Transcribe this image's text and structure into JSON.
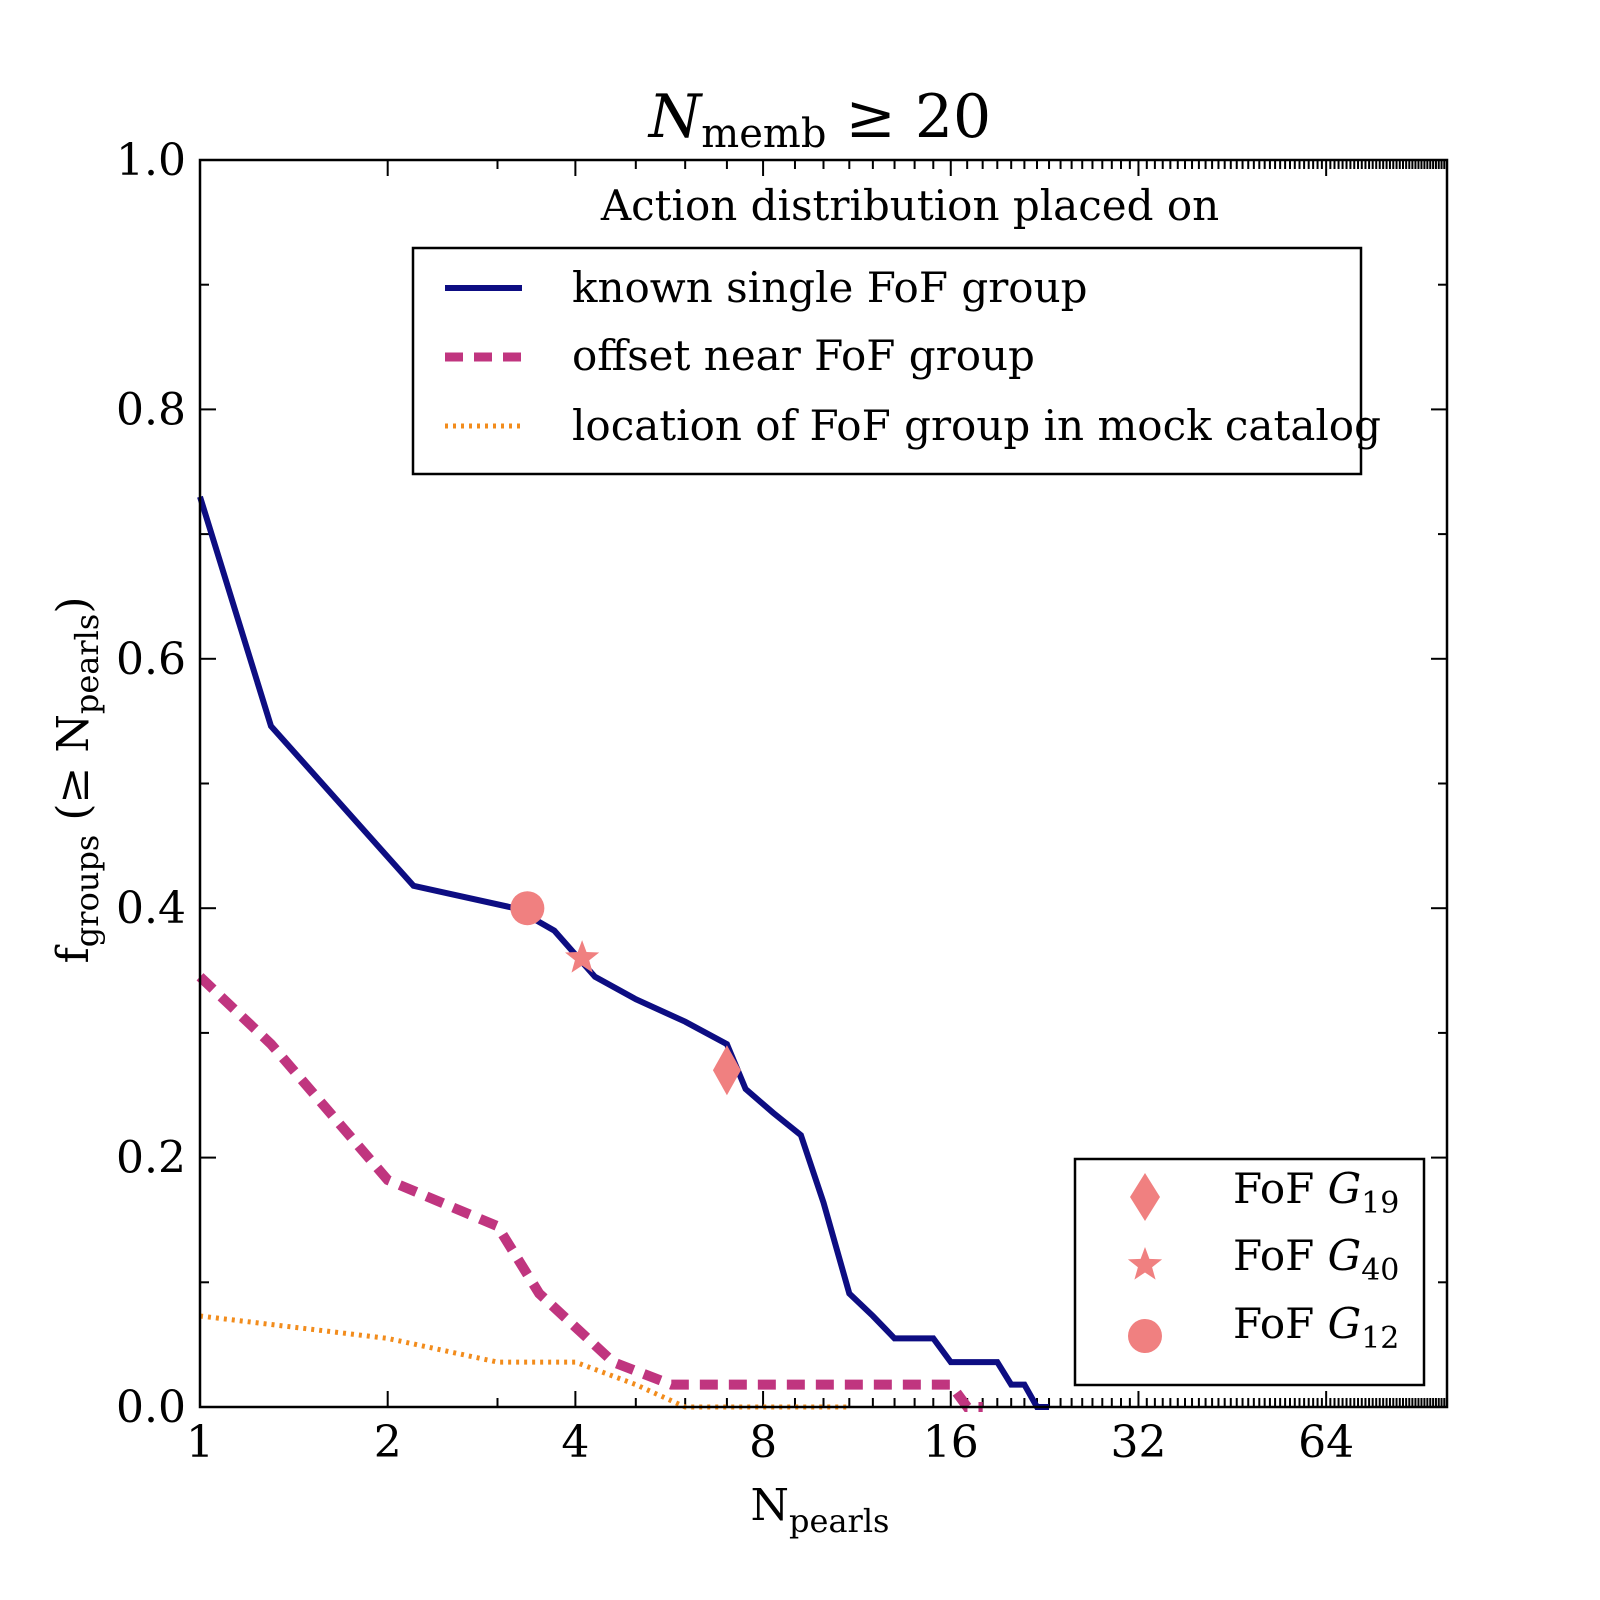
{
  "chart_data": {
    "type": "line",
    "title": {
      "main": "N",
      "sub": "memb",
      "rest": " ≥ 20"
    },
    "xlabel": {
      "main": "N",
      "sub": "pearls"
    },
    "ylabel": {
      "main": "f",
      "sub": "groups",
      "rest_open": " (≥ N",
      "sub2": "pearls",
      "rest_close": ")"
    },
    "xscale": "log2",
    "xlim": [
      1,
      100
    ],
    "ylim": [
      0.0,
      1.0
    ],
    "xticks": [
      {
        "value": 1,
        "label": "1"
      },
      {
        "value": 2,
        "label": "2"
      },
      {
        "value": 4,
        "label": "4"
      },
      {
        "value": 8,
        "label": "8"
      },
      {
        "value": 16,
        "label": "16"
      },
      {
        "value": 32,
        "label": "32"
      },
      {
        "value": 64,
        "label": "64"
      }
    ],
    "yticks": [
      {
        "value": 0.0,
        "label": "0.0"
      },
      {
        "value": 0.2,
        "label": "0.2"
      },
      {
        "value": 0.4,
        "label": "0.4"
      },
      {
        "value": 0.6,
        "label": "0.6"
      },
      {
        "value": 0.8,
        "label": "0.8"
      },
      {
        "value": 1.0,
        "label": "1.0"
      }
    ],
    "legend_title": "Action distribution placed on",
    "legend_position": "top-right",
    "series": [
      {
        "name": "known single FoF group",
        "style": "solid",
        "color": "#0d0d82",
        "x": [
          1,
          1.3,
          2.2,
          3.2,
          3.7,
          4.3,
          5,
          6,
          7,
          7.5,
          8.3,
          9.2,
          10,
          11,
          12,
          13,
          14,
          15,
          16,
          17,
          18,
          19,
          20,
          21,
          22,
          23
        ],
        "y": [
          0.73,
          0.546,
          0.418,
          0.4,
          0.382,
          0.345,
          0.327,
          0.309,
          0.291,
          0.255,
          0.236,
          0.218,
          0.164,
          0.091,
          0.073,
          0.055,
          0.055,
          0.055,
          0.036,
          0.036,
          0.036,
          0.036,
          0.018,
          0.018,
          0.0,
          0.0
        ]
      },
      {
        "name": "offset near FoF group",
        "style": "dashed",
        "color": "#c0357f",
        "x": [
          1,
          1.3,
          2,
          3,
          3.5,
          4.6,
          5.7,
          6,
          8,
          10,
          12,
          14,
          15,
          16,
          17,
          18
        ],
        "y": [
          0.345,
          0.291,
          0.182,
          0.145,
          0.091,
          0.036,
          0.018,
          0.018,
          0.018,
          0.018,
          0.018,
          0.018,
          0.018,
          0.018,
          0.0,
          0.0
        ]
      },
      {
        "name": "location of FoF group in mock catalog",
        "style": "dotted",
        "color": "#f28c1c",
        "x": [
          1,
          2,
          3,
          4,
          5,
          6,
          8,
          10,
          11
        ],
        "y": [
          0.073,
          0.055,
          0.036,
          0.036,
          0.018,
          0.0,
          0.0,
          0.0,
          0.0
        ]
      }
    ],
    "markers": [
      {
        "name": "FoF",
        "sub": "19",
        "symbol": "diamond",
        "x": 7,
        "y": 0.27
      },
      {
        "name": "FoF",
        "sub": "40",
        "symbol": "star",
        "x": 4.1,
        "y": 0.36
      },
      {
        "name": "FoF",
        "sub": "12",
        "symbol": "circle",
        "x": 3.35,
        "y": 0.4
      }
    ],
    "marker_legend_position": "bottom-right",
    "marker_color": "#f08080"
  }
}
